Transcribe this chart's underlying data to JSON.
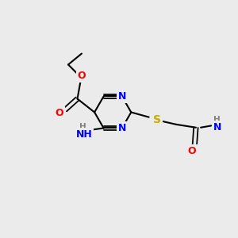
{
  "bg_color": "#EBEBEB",
  "bond_color": "#000000",
  "bond_width": 1.5,
  "atom_colors": {
    "N": "#0000FF",
    "O": "#FF0000",
    "S": "#CCAA00",
    "Cl": "#7FBF00",
    "Br": "#A05020",
    "C": "#000000",
    "H": "#808080"
  },
  "font_size": 9,
  "font_size_small": 7.5
}
